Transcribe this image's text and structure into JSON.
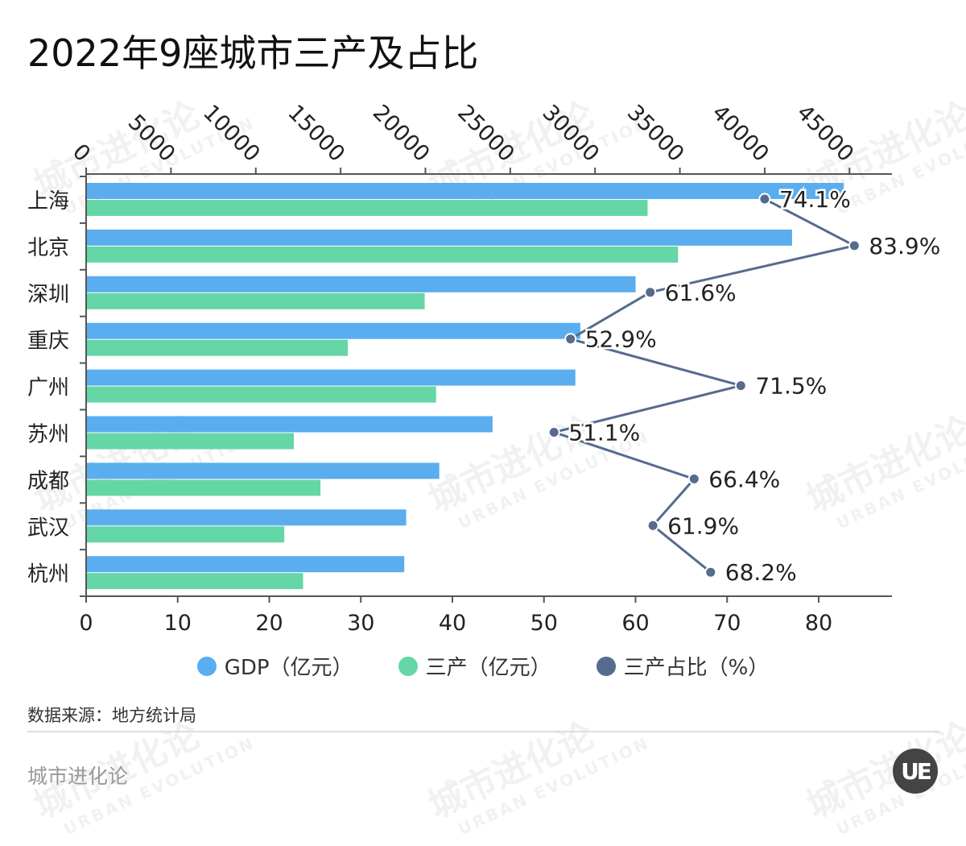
{
  "title": "2022年9座城市三产及占比",
  "watermark": {
    "main": "城市进化论",
    "sub": "URBAN EVOLUTION"
  },
  "colors": {
    "gdp": "#5aadef",
    "tertiary": "#65d6a5",
    "share": "#566b8e"
  },
  "chart_data": {
    "type": "bar",
    "orientation": "horizontal",
    "categories": [
      "上海",
      "北京",
      "深圳",
      "重庆",
      "广州",
      "苏州",
      "成都",
      "武汉",
      "杭州"
    ],
    "series": [
      {
        "name": "GDP（亿元）",
        "axis": "top",
        "values": [
          44653,
          41611,
          32388,
          29129,
          28839,
          23958,
          20817,
          18866,
          18753
        ]
      },
      {
        "name": "三产（亿元）",
        "axis": "top",
        "values": [
          33097,
          34894,
          19957,
          15423,
          20630,
          12244,
          13813,
          11682,
          12787
        ]
      },
      {
        "name": "三产占比（%）",
        "axis": "bottom",
        "type": "line",
        "values": [
          74.1,
          83.9,
          61.6,
          52.9,
          71.5,
          51.1,
          66.4,
          61.9,
          68.2
        ],
        "labels": [
          "74.1%",
          "83.9%",
          "61.6%",
          "52.9%",
          "71.5%",
          "51.1%",
          "66.4%",
          "61.9%",
          "68.2%"
        ]
      }
    ],
    "top_axis": {
      "range": [
        0,
        47500
      ],
      "ticks": [
        "0",
        "5000",
        "10000",
        "15000",
        "20000",
        "25000",
        "30000",
        "35000",
        "40000",
        "45000"
      ]
    },
    "bottom_axis": {
      "range": [
        0,
        88
      ],
      "ticks": [
        "0",
        "10",
        "20",
        "30",
        "40",
        "50",
        "60",
        "70",
        "80"
      ]
    }
  },
  "legend": [
    {
      "label": "GDP（亿元）"
    },
    {
      "label": "三产（亿元）"
    },
    {
      "label": "三产占比（%）"
    }
  ],
  "source": "数据来源：地方统计局",
  "brand": "城市进化论",
  "logo": "UE"
}
